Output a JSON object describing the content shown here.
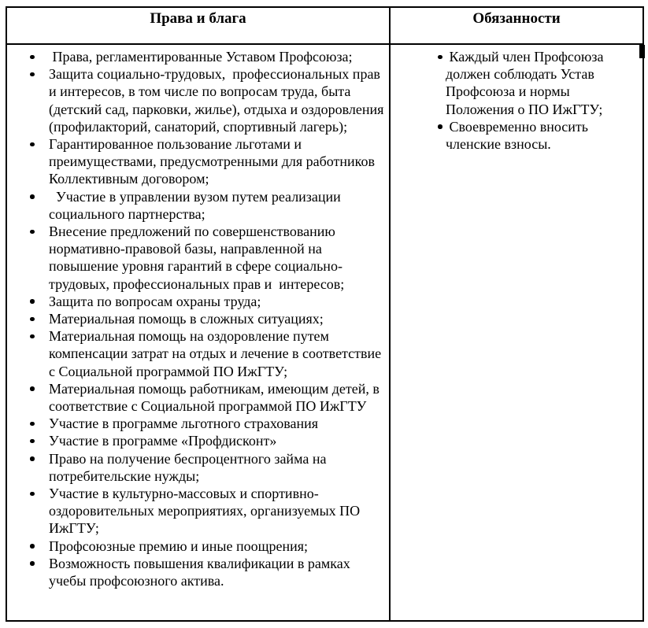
{
  "colors": {
    "border": "#000000",
    "text": "#000000",
    "background": "#ffffff"
  },
  "table": {
    "headers": {
      "left": "Права и блага",
      "right": "Обязанности"
    },
    "left_column_items": [
      " Права, регламентированные Уставом Профсоюза;",
      "Защита социально-трудовых,  профессиональных прав и интересов, в том числе по вопросам труда, быта (детский сад, парковки, жилье), отдыха и оздоровления (профилакторий, санаторий, спортивный лагерь);",
      "Гарантированное пользование льготами и преимуществами, предусмотренными для работников Коллективным договором;",
      "  Участие в управлении вузом путем реализации социального партнерства;",
      "Внесение предложений по совершенствованию нормативно-правовой базы, направленной на повышение уровня гарантий в сфере социально-трудовых, профессиональных прав и  интересов;",
      "Защита по вопросам охраны труда;",
      "Материальная помощь в сложных ситуациях;",
      "Материальная помощь на оздоровление путем компенсации затрат на отдых и лечение в соответствие с Социальной программой ПО ИжГТУ;",
      "Материальная помощь работникам, имеющим детей, в соответствие с Социальной программой ПО ИжГТУ",
      "Участие в программе льготного страхования",
      "Участие в программе «Профдисконт»",
      "Право на получение беспроцентного займа на потребительские нужды;",
      "Участие в культурно-массовых и спортивно-оздоровительных мероприятиях, организуемых ПО ИжГТУ;",
      "Профсоюзные премию и иные поощрения;",
      "Возможность повышения квалификации в рамках учебы профсоюзного актива."
    ],
    "right_column_items": [
      " Каждый член Профсоюза должен соблюдать Устав Профсоюза и нормы Положения о ПО ИжГТУ;",
      " Своевременно вносить членские взносы."
    ]
  }
}
